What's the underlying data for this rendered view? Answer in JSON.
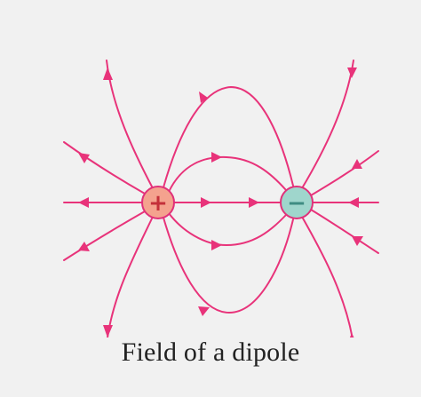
{
  "caption": "Field of a dipole",
  "charges": [
    {
      "name": "positive-charge",
      "sign": "+",
      "fill": "#f4a28e",
      "stroke": "#e0317a",
      "text_color": "#c4303a"
    },
    {
      "name": "negative-charge",
      "sign": "−",
      "fill": "#9fd6cc",
      "stroke": "#e0317a",
      "text_color": "#3f8c82"
    }
  ],
  "colors": {
    "background": "#f1f1f1",
    "field_line": "#e8337a",
    "caption_text": "#222222"
  }
}
